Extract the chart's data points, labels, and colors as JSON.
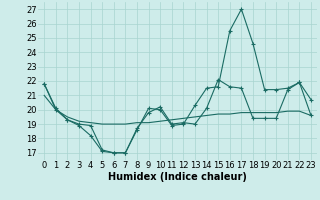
{
  "xlabel": "Humidex (Indice chaleur)",
  "xlim": [
    -0.5,
    23.5
  ],
  "ylim": [
    16.5,
    27.5
  ],
  "xticks": [
    0,
    1,
    2,
    3,
    4,
    5,
    6,
    7,
    8,
    9,
    10,
    11,
    12,
    13,
    14,
    15,
    16,
    17,
    18,
    19,
    20,
    21,
    22,
    23
  ],
  "yticks": [
    17,
    18,
    19,
    20,
    21,
    22,
    23,
    24,
    25,
    26,
    27
  ],
  "background_color": "#ceecea",
  "grid_color": "#a8d4d0",
  "line_color": "#1a6b63",
  "line1_x": [
    0,
    1,
    2,
    3,
    4,
    5,
    6,
    7,
    8,
    9,
    10,
    11,
    12,
    13,
    14,
    15,
    16,
    17,
    18,
    19,
    20,
    21,
    22,
    23
  ],
  "line1_y": [
    21.8,
    20.0,
    19.3,
    18.9,
    18.2,
    17.1,
    17.0,
    17.0,
    18.6,
    20.1,
    20.0,
    18.9,
    19.0,
    20.3,
    21.5,
    21.6,
    25.5,
    27.0,
    24.6,
    21.4,
    21.4,
    21.5,
    21.9,
    20.7
  ],
  "line2_x": [
    0,
    1,
    2,
    3,
    4,
    5,
    6,
    7,
    8,
    9,
    10,
    11,
    12,
    13,
    14,
    15,
    16,
    17,
    18,
    19,
    20,
    21,
    22,
    23
  ],
  "line2_y": [
    21.8,
    20.1,
    19.3,
    19.0,
    18.9,
    17.2,
    17.0,
    17.0,
    18.7,
    19.8,
    20.2,
    19.0,
    19.1,
    19.0,
    20.1,
    22.1,
    21.6,
    21.5,
    19.4,
    19.4,
    19.4,
    21.4,
    21.9,
    19.6
  ],
  "line3_x": [
    0,
    1,
    2,
    3,
    4,
    5,
    6,
    7,
    8,
    9,
    10,
    11,
    12,
    13,
    14,
    15,
    16,
    17,
    18,
    19,
    20,
    21,
    22,
    23
  ],
  "line3_y": [
    21.0,
    20.0,
    19.5,
    19.2,
    19.1,
    19.0,
    19.0,
    19.0,
    19.1,
    19.1,
    19.2,
    19.3,
    19.4,
    19.5,
    19.6,
    19.7,
    19.7,
    19.8,
    19.8,
    19.8,
    19.8,
    19.9,
    19.9,
    19.6
  ],
  "xlabel_fontsize": 7,
  "tick_fontsize": 6
}
